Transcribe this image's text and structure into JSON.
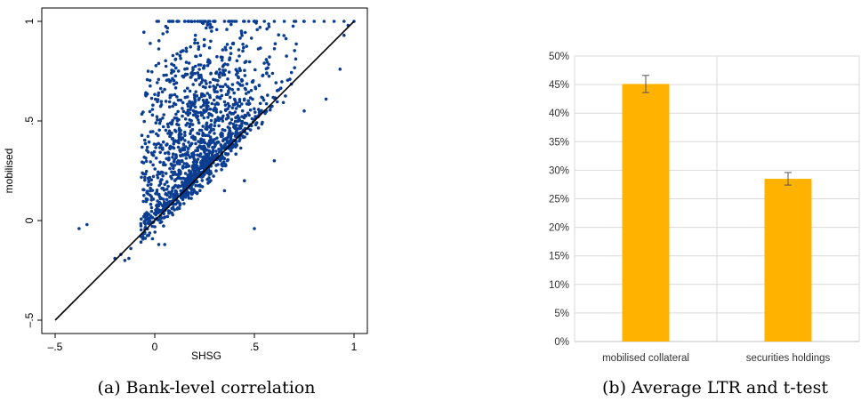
{
  "chart_data": [
    {
      "type": "scatter",
      "caption": "(a) Bank-level correlation",
      "xlabel": "SHSG",
      "ylabel": "mobilised",
      "xlim": [
        -0.5,
        1.0
      ],
      "ylim": [
        -0.5,
        1.0
      ],
      "xticks": [
        "–.5",
        "0",
        ".5",
        "1"
      ],
      "xtick_values": [
        -0.5,
        0,
        0.5,
        1
      ],
      "yticks": [
        "–.5",
        "0",
        ".5",
        "1"
      ],
      "ytick_values": [
        -0.5,
        0,
        0.5,
        1
      ],
      "point_color": "#0b3d91",
      "reference_line": {
        "from": [
          -0.5,
          -0.5
        ],
        "to": [
          1.0,
          1.0
        ],
        "color": "#000000"
      },
      "outliers": [
        [
          -0.38,
          -0.04
        ],
        [
          -0.34,
          -0.02
        ],
        [
          -0.2,
          -0.19
        ],
        [
          -0.17,
          -0.17
        ],
        [
          -0.15,
          -0.2
        ],
        [
          -0.13,
          -0.19
        ],
        [
          -0.12,
          -0.14
        ],
        [
          -0.07,
          -0.08
        ],
        [
          -0.05,
          -0.06
        ],
        [
          0.02,
          -0.12
        ],
        [
          0.05,
          -0.12
        ],
        [
          0.5,
          -0.04
        ],
        [
          0.95,
          0.93
        ],
        [
          0.97,
          0.98
        ],
        [
          0.93,
          0.76
        ],
        [
          0.86,
          0.61
        ],
        [
          0.75,
          0.55
        ],
        [
          0.6,
          0.3
        ],
        [
          0.35,
          0.15
        ],
        [
          0.45,
          0.2
        ],
        [
          0.09,
          1.0
        ],
        [
          0.12,
          1.0
        ],
        [
          0.15,
          1.0
        ],
        [
          0.2,
          1.0
        ],
        [
          0.25,
          1.0
        ],
        [
          0.3,
          1.0
        ],
        [
          0.35,
          1.0
        ],
        [
          0.4,
          1.0
        ],
        [
          0.45,
          1.0
        ],
        [
          0.5,
          1.0
        ],
        [
          0.55,
          1.0
        ],
        [
          0.6,
          1.0
        ],
        [
          0.65,
          1.0
        ],
        [
          0.7,
          1.0
        ],
        [
          0.75,
          1.0
        ],
        [
          0.8,
          1.0
        ],
        [
          0.85,
          1.0
        ],
        [
          0.9,
          1.0
        ],
        [
          0.95,
          1.0
        ],
        [
          1.0,
          1.0
        ]
      ]
    },
    {
      "type": "bar",
      "caption": "(b) Average LTR and t-test",
      "categories": [
        "mobilised collateral",
        "securities holdings"
      ],
      "values": [
        45.1,
        28.5
      ],
      "error": [
        1.5,
        1.1
      ],
      "ylim": [
        0,
        50
      ],
      "yticks": [
        "0%",
        "5%",
        "10%",
        "15%",
        "20%",
        "25%",
        "30%",
        "35%",
        "40%",
        "45%",
        "50%"
      ],
      "ytick_values": [
        0,
        5,
        10,
        15,
        20,
        25,
        30,
        35,
        40,
        45,
        50
      ],
      "bar_color": "#ffb200",
      "grid": true
    }
  ]
}
